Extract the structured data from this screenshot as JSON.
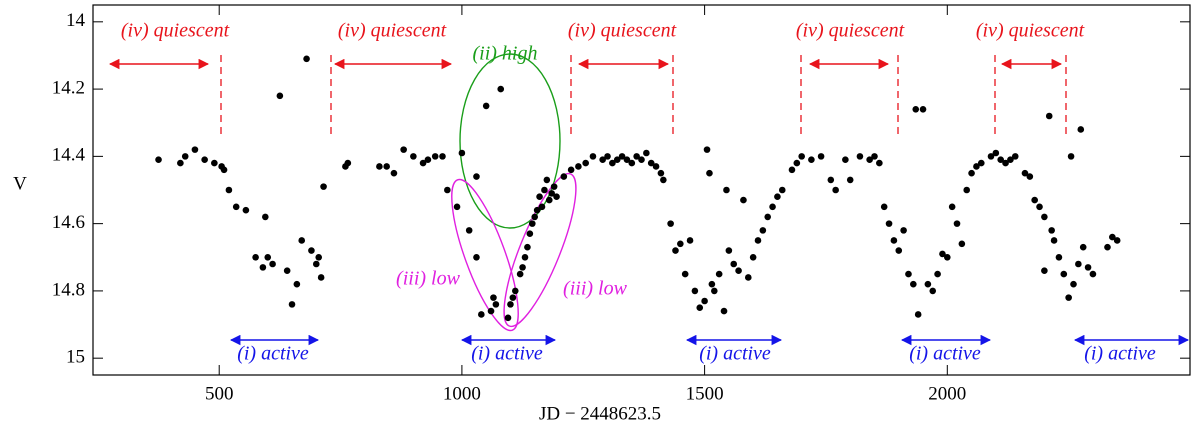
{
  "chart_data": {
    "type": "scatter",
    "xlabel": "JD − 2448623.5",
    "ylabel": "V",
    "xlim": [
      240,
      2500
    ],
    "ylim": [
      13.95,
      15.05
    ],
    "y_inverted": true,
    "color": "#000000",
    "xticks": [
      500,
      1000,
      1500,
      2000
    ],
    "yticks": [
      14,
      14.2,
      14.4,
      14.6,
      14.8,
      15
    ],
    "annotations": {
      "quiescent": "(iv) quiescent",
      "high": "(ii) high",
      "low": "(iii) low",
      "active": "(i) active"
    },
    "x": [
      375,
      420,
      430,
      450,
      470,
      490,
      505,
      510,
      520,
      535,
      555,
      575,
      590,
      595,
      600,
      610,
      625,
      640,
      650,
      660,
      670,
      680,
      690,
      700,
      705,
      710,
      715,
      760,
      765,
      830,
      845,
      860,
      880,
      900,
      920,
      930,
      945,
      960,
      970,
      990,
      1000,
      1015,
      1030,
      1030,
      1040,
      1050,
      1060,
      1065,
      1070,
      1080,
      1095,
      1100,
      1105,
      1110,
      1120,
      1125,
      1130,
      1135,
      1140,
      1145,
      1150,
      1155,
      1160,
      1165,
      1170,
      1175,
      1180,
      1185,
      1190,
      1195,
      1210,
      1225,
      1240,
      1255,
      1270,
      1290,
      1300,
      1310,
      1320,
      1330,
      1340,
      1350,
      1360,
      1370,
      1380,
      1390,
      1400,
      1410,
      1415,
      1430,
      1440,
      1450,
      1460,
      1470,
      1480,
      1490,
      1500,
      1505,
      1510,
      1515,
      1520,
      1530,
      1540,
      1545,
      1550,
      1560,
      1570,
      1580,
      1590,
      1600,
      1610,
      1620,
      1630,
      1640,
      1650,
      1660,
      1680,
      1690,
      1700,
      1720,
      1740,
      1760,
      1770,
      1790,
      1800,
      1820,
      1840,
      1850,
      1860,
      1870,
      1880,
      1890,
      1900,
      1910,
      1920,
      1930,
      1935,
      1940,
      1950,
      1960,
      1970,
      1980,
      1990,
      2000,
      2010,
      2020,
      2030,
      2040,
      2050,
      2060,
      2070,
      2090,
      2100,
      2110,
      2120,
      2130,
      2140,
      2160,
      2170,
      2180,
      2190,
      2200,
      2200,
      2210,
      2215,
      2220,
      2230,
      2240,
      2250,
      2255,
      2260,
      2270,
      2275,
      2280,
      2290,
      2300,
      2330,
      2340,
      2350
    ],
    "values": [
      14.41,
      14.42,
      14.4,
      14.38,
      14.41,
      14.42,
      14.43,
      14.44,
      14.5,
      14.55,
      14.56,
      14.7,
      14.73,
      14.58,
      14.7,
      14.72,
      14.22,
      14.74,
      14.84,
      14.78,
      14.65,
      14.11,
      14.68,
      14.72,
      14.7,
      14.76,
      14.49,
      14.43,
      14.42,
      14.43,
      14.43,
      14.45,
      14.38,
      14.4,
      14.42,
      14.41,
      14.4,
      14.4,
      14.5,
      14.55,
      14.39,
      14.62,
      14.7,
      14.46,
      14.87,
      14.25,
      14.86,
      14.82,
      14.84,
      14.2,
      14.88,
      14.84,
      14.82,
      14.8,
      14.75,
      14.73,
      14.7,
      14.67,
      14.63,
      14.6,
      14.58,
      14.56,
      14.52,
      14.55,
      14.5,
      14.47,
      14.53,
      14.51,
      14.49,
      14.52,
      14.46,
      14.44,
      14.43,
      14.42,
      14.4,
      14.41,
      14.4,
      14.42,
      14.41,
      14.4,
      14.41,
      14.42,
      14.4,
      14.41,
      14.39,
      14.42,
      14.43,
      14.45,
      14.47,
      14.6,
      14.68,
      14.66,
      14.75,
      14.65,
      14.8,
      14.85,
      14.83,
      14.38,
      14.45,
      14.78,
      14.8,
      14.75,
      14.86,
      14.5,
      14.68,
      14.72,
      14.74,
      14.53,
      14.76,
      14.7,
      14.65,
      14.62,
      14.58,
      14.55,
      14.52,
      14.5,
      14.44,
      14.42,
      14.4,
      14.41,
      14.4,
      14.47,
      14.5,
      14.41,
      14.47,
      14.4,
      14.41,
      14.4,
      14.42,
      14.55,
      14.6,
      14.65,
      14.68,
      14.62,
      14.75,
      14.78,
      14.26,
      14.87,
      14.26,
      14.78,
      14.8,
      14.75,
      14.69,
      14.7,
      14.55,
      14.6,
      14.66,
      14.5,
      14.45,
      14.43,
      14.42,
      14.4,
      14.39,
      14.41,
      14.42,
      14.41,
      14.4,
      14.45,
      14.46,
      14.53,
      14.55,
      14.58,
      14.74,
      14.28,
      14.62,
      14.65,
      14.7,
      14.75,
      14.82,
      14.4,
      14.78,
      14.72,
      14.32,
      14.67,
      14.73,
      14.75,
      14.67,
      14.64,
      14.65
    ]
  }
}
